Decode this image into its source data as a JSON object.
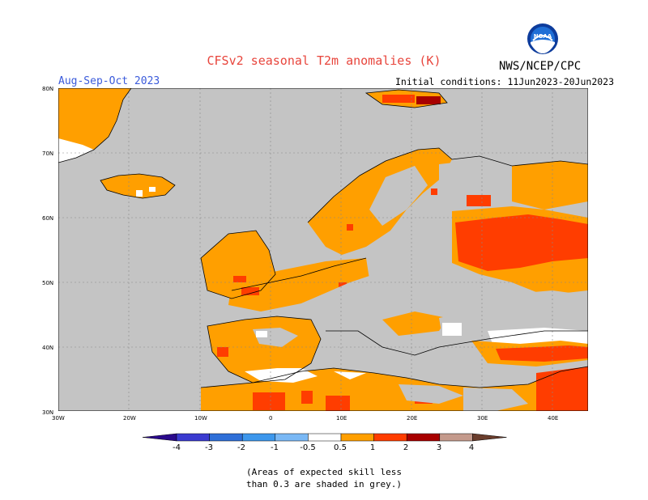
{
  "title": "CFSv2 seasonal T2m anomalies (K)",
  "season": "Aug-Sep-Oct 2023",
  "initial_conditions": "Initial conditions: 11Jun2023-20Jun2023",
  "agency": "NWS/NCEP/CPC",
  "logo_text": "NOAA",
  "lat_labels": [
    "80N",
    "70N",
    "60N",
    "50N",
    "40N",
    "30N"
  ],
  "lon_labels": [
    "30W",
    "20W",
    "10W",
    "0",
    "10E",
    "20E",
    "30E",
    "40E"
  ],
  "colorbar": {
    "ticks": [
      "-4",
      "-3",
      "-2",
      "-1",
      "-0.5",
      "0.5",
      "1",
      "2",
      "3",
      "4"
    ],
    "colors": [
      "#2b0a8c",
      "#3b3bd0",
      "#2f6fd8",
      "#3d97ec",
      "#7ab8f5",
      "#ffffff",
      "#ff9f00",
      "#ff3d00",
      "#a80000",
      "#c49a8c",
      "#6a3d2c"
    ]
  },
  "map_colors": {
    "no_skill_grey": "#c4c4c4",
    "near_normal": "#ffffff",
    "anom_0_5_1": "#ff9f00",
    "anom_1_2": "#ff3d00",
    "anom_2_3": "#a80000"
  },
  "note_lines": [
    "(Areas of expected skill less",
    "than 0.3 are shaded in grey.)"
  ]
}
